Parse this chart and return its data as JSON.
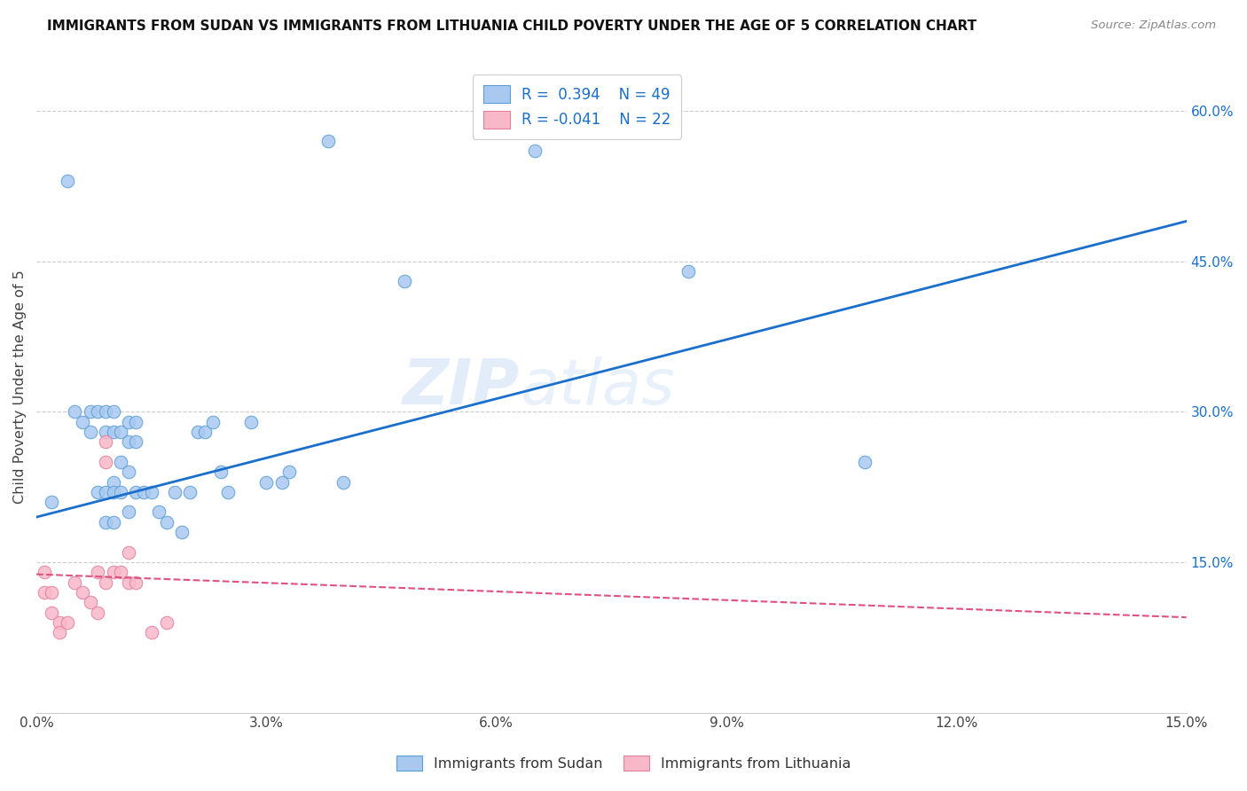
{
  "title": "IMMIGRANTS FROM SUDAN VS IMMIGRANTS FROM LITHUANIA CHILD POVERTY UNDER THE AGE OF 5 CORRELATION CHART",
  "source": "Source: ZipAtlas.com",
  "ylabel": "Child Poverty Under the Age of 5",
  "xlim": [
    0.0,
    0.15
  ],
  "ylim": [
    0.0,
    0.65
  ],
  "xticks": [
    0.0,
    0.03,
    0.06,
    0.09,
    0.12,
    0.15
  ],
  "yticks_right": [
    0.15,
    0.3,
    0.45,
    0.6
  ],
  "ytick_labels_right": [
    "15.0%",
    "30.0%",
    "45.0%",
    "60.0%"
  ],
  "xtick_labels": [
    "0.0%",
    "3.0%",
    "6.0%",
    "9.0%",
    "12.0%",
    "15.0%"
  ],
  "sudan_color": "#a8c8f0",
  "sudan_edge_color": "#5a9fd4",
  "sudan_line_color": "#1a6fcc",
  "lithuania_color": "#f8b8c8",
  "lithuania_edge_color": "#e080a0",
  "lithuania_line_color": "#e05080",
  "R_sudan": 0.394,
  "N_sudan": 49,
  "R_lithuania": -0.041,
  "N_lithuania": 22,
  "watermark": "ZIPatlas",
  "sudan_scatter_x": [
    0.002,
    0.004,
    0.005,
    0.006,
    0.007,
    0.007,
    0.008,
    0.008,
    0.009,
    0.009,
    0.009,
    0.009,
    0.01,
    0.01,
    0.01,
    0.01,
    0.01,
    0.011,
    0.011,
    0.011,
    0.012,
    0.012,
    0.012,
    0.012,
    0.013,
    0.013,
    0.013,
    0.014,
    0.015,
    0.016,
    0.017,
    0.018,
    0.019,
    0.02,
    0.021,
    0.022,
    0.023,
    0.024,
    0.025,
    0.028,
    0.03,
    0.032,
    0.033,
    0.038,
    0.04,
    0.048,
    0.065,
    0.085,
    0.108
  ],
  "sudan_scatter_y": [
    0.21,
    0.53,
    0.3,
    0.29,
    0.3,
    0.28,
    0.3,
    0.22,
    0.3,
    0.28,
    0.22,
    0.19,
    0.3,
    0.28,
    0.23,
    0.22,
    0.19,
    0.28,
    0.25,
    0.22,
    0.29,
    0.27,
    0.24,
    0.2,
    0.29,
    0.27,
    0.22,
    0.22,
    0.22,
    0.2,
    0.19,
    0.22,
    0.18,
    0.22,
    0.28,
    0.28,
    0.29,
    0.24,
    0.22,
    0.29,
    0.23,
    0.23,
    0.24,
    0.57,
    0.23,
    0.43,
    0.56,
    0.44,
    0.25
  ],
  "lithuania_scatter_x": [
    0.001,
    0.001,
    0.002,
    0.002,
    0.003,
    0.003,
    0.004,
    0.005,
    0.006,
    0.007,
    0.008,
    0.008,
    0.009,
    0.009,
    0.009,
    0.01,
    0.011,
    0.012,
    0.012,
    0.013,
    0.015,
    0.017
  ],
  "lithuania_scatter_y": [
    0.14,
    0.12,
    0.12,
    0.1,
    0.09,
    0.08,
    0.09,
    0.13,
    0.12,
    0.11,
    0.14,
    0.1,
    0.25,
    0.27,
    0.13,
    0.14,
    0.14,
    0.16,
    0.13,
    0.13,
    0.08,
    0.09
  ],
  "sudan_trend_x0": 0.0,
  "sudan_trend_y0": 0.195,
  "sudan_trend_x1": 0.15,
  "sudan_trend_y1": 0.49,
  "lith_trend_x0": 0.0,
  "lith_trend_y0": 0.138,
  "lith_trend_x1": 0.15,
  "lith_trend_y1": 0.095
}
